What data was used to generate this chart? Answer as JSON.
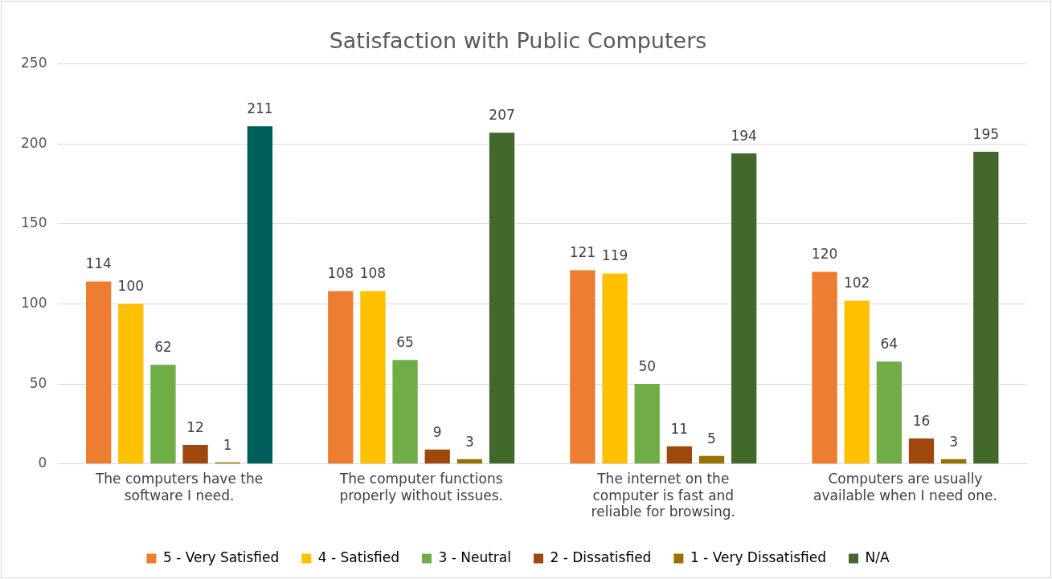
{
  "chart_data": {
    "type": "bar",
    "title": "Satisfaction with Public Computers",
    "categories": [
      "The computers have the software I need.",
      "The computer functions properly without issues.",
      "The internet on the computer is fast and reliable for browsing.",
      "Computers are usually available when I need one."
    ],
    "series": [
      {
        "name": "5 - Very Satisfied",
        "color": "#ed7d31",
        "values": [
          114,
          108,
          121,
          120
        ]
      },
      {
        "name": "4 - Satisfied",
        "color": "#ffc000",
        "values": [
          100,
          108,
          119,
          102
        ]
      },
      {
        "name": "3 - Neutral",
        "color": "#70ad47",
        "values": [
          62,
          65,
          50,
          64
        ]
      },
      {
        "name": "2 - Dissatisfied",
        "color": "#9e480e",
        "values": [
          12,
          9,
          11,
          16
        ]
      },
      {
        "name": "1 - Very Dissatisfied",
        "color": "#997300",
        "values": [
          1,
          3,
          5,
          3
        ]
      },
      {
        "name": "N/A",
        "color": "#43682b",
        "colors": [
          "#005f5b",
          "#43682b",
          "#43682b",
          "#43682b"
        ],
        "values": [
          211,
          207,
          194,
          195
        ]
      }
    ],
    "ylim": [
      0,
      250
    ],
    "yticks": [
      0,
      50,
      100,
      150,
      200,
      250
    ],
    "grid": "y",
    "legend": "bottom",
    "data_labels": true
  }
}
